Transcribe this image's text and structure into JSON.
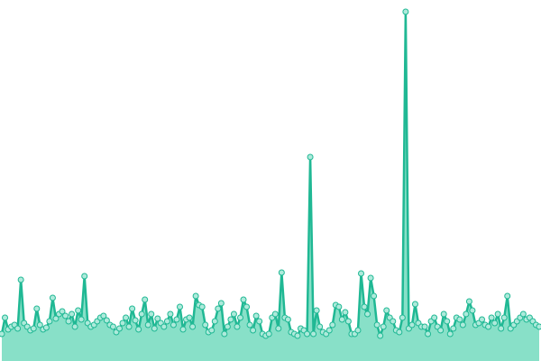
{
  "chart_data": {
    "type": "line",
    "area": true,
    "color": "#20b894",
    "area_color": "#88e0c8",
    "marker_fill": "#aeeadb",
    "ylim": [
      0,
      400
    ],
    "values": [
      30,
      48,
      35,
      38,
      40,
      36,
      90,
      42,
      38,
      34,
      36,
      58,
      40,
      35,
      37,
      44,
      70,
      47,
      52,
      55,
      50,
      44,
      52,
      38,
      56,
      46,
      94,
      42,
      38,
      40,
      44,
      48,
      50,
      45,
      40,
      38,
      32,
      36,
      42,
      48,
      38,
      58,
      45,
      35,
      52,
      68,
      40,
      52,
      36,
      47,
      42,
      38,
      44,
      52,
      40,
      46,
      60,
      35,
      46,
      48,
      38,
      72,
      62,
      60,
      40,
      32,
      34,
      44,
      58,
      64,
      30,
      38,
      46,
      52,
      38,
      48,
      68,
      60,
      40,
      34,
      50,
      44,
      30,
      28,
      30,
      48,
      52,
      36,
      98,
      48,
      46,
      32,
      30,
      28,
      36,
      34,
      30,
      226,
      30,
      56,
      38,
      32,
      30,
      34,
      40,
      62,
      60,
      46,
      54,
      44,
      30,
      30,
      34,
      97,
      60,
      52,
      92,
      72,
      40,
      28,
      38,
      56,
      48,
      44,
      34,
      32,
      48,
      387,
      36,
      40,
      63,
      42,
      38,
      38,
      30,
      44,
      48,
      38,
      34,
      52,
      44,
      30,
      36,
      48,
      46,
      40,
      52,
      66,
      56,
      40,
      42,
      46,
      40,
      38,
      48,
      42,
      52,
      36,
      48,
      72,
      36,
      40,
      44,
      48,
      52,
      46,
      48,
      44,
      40,
      38
    ]
  }
}
